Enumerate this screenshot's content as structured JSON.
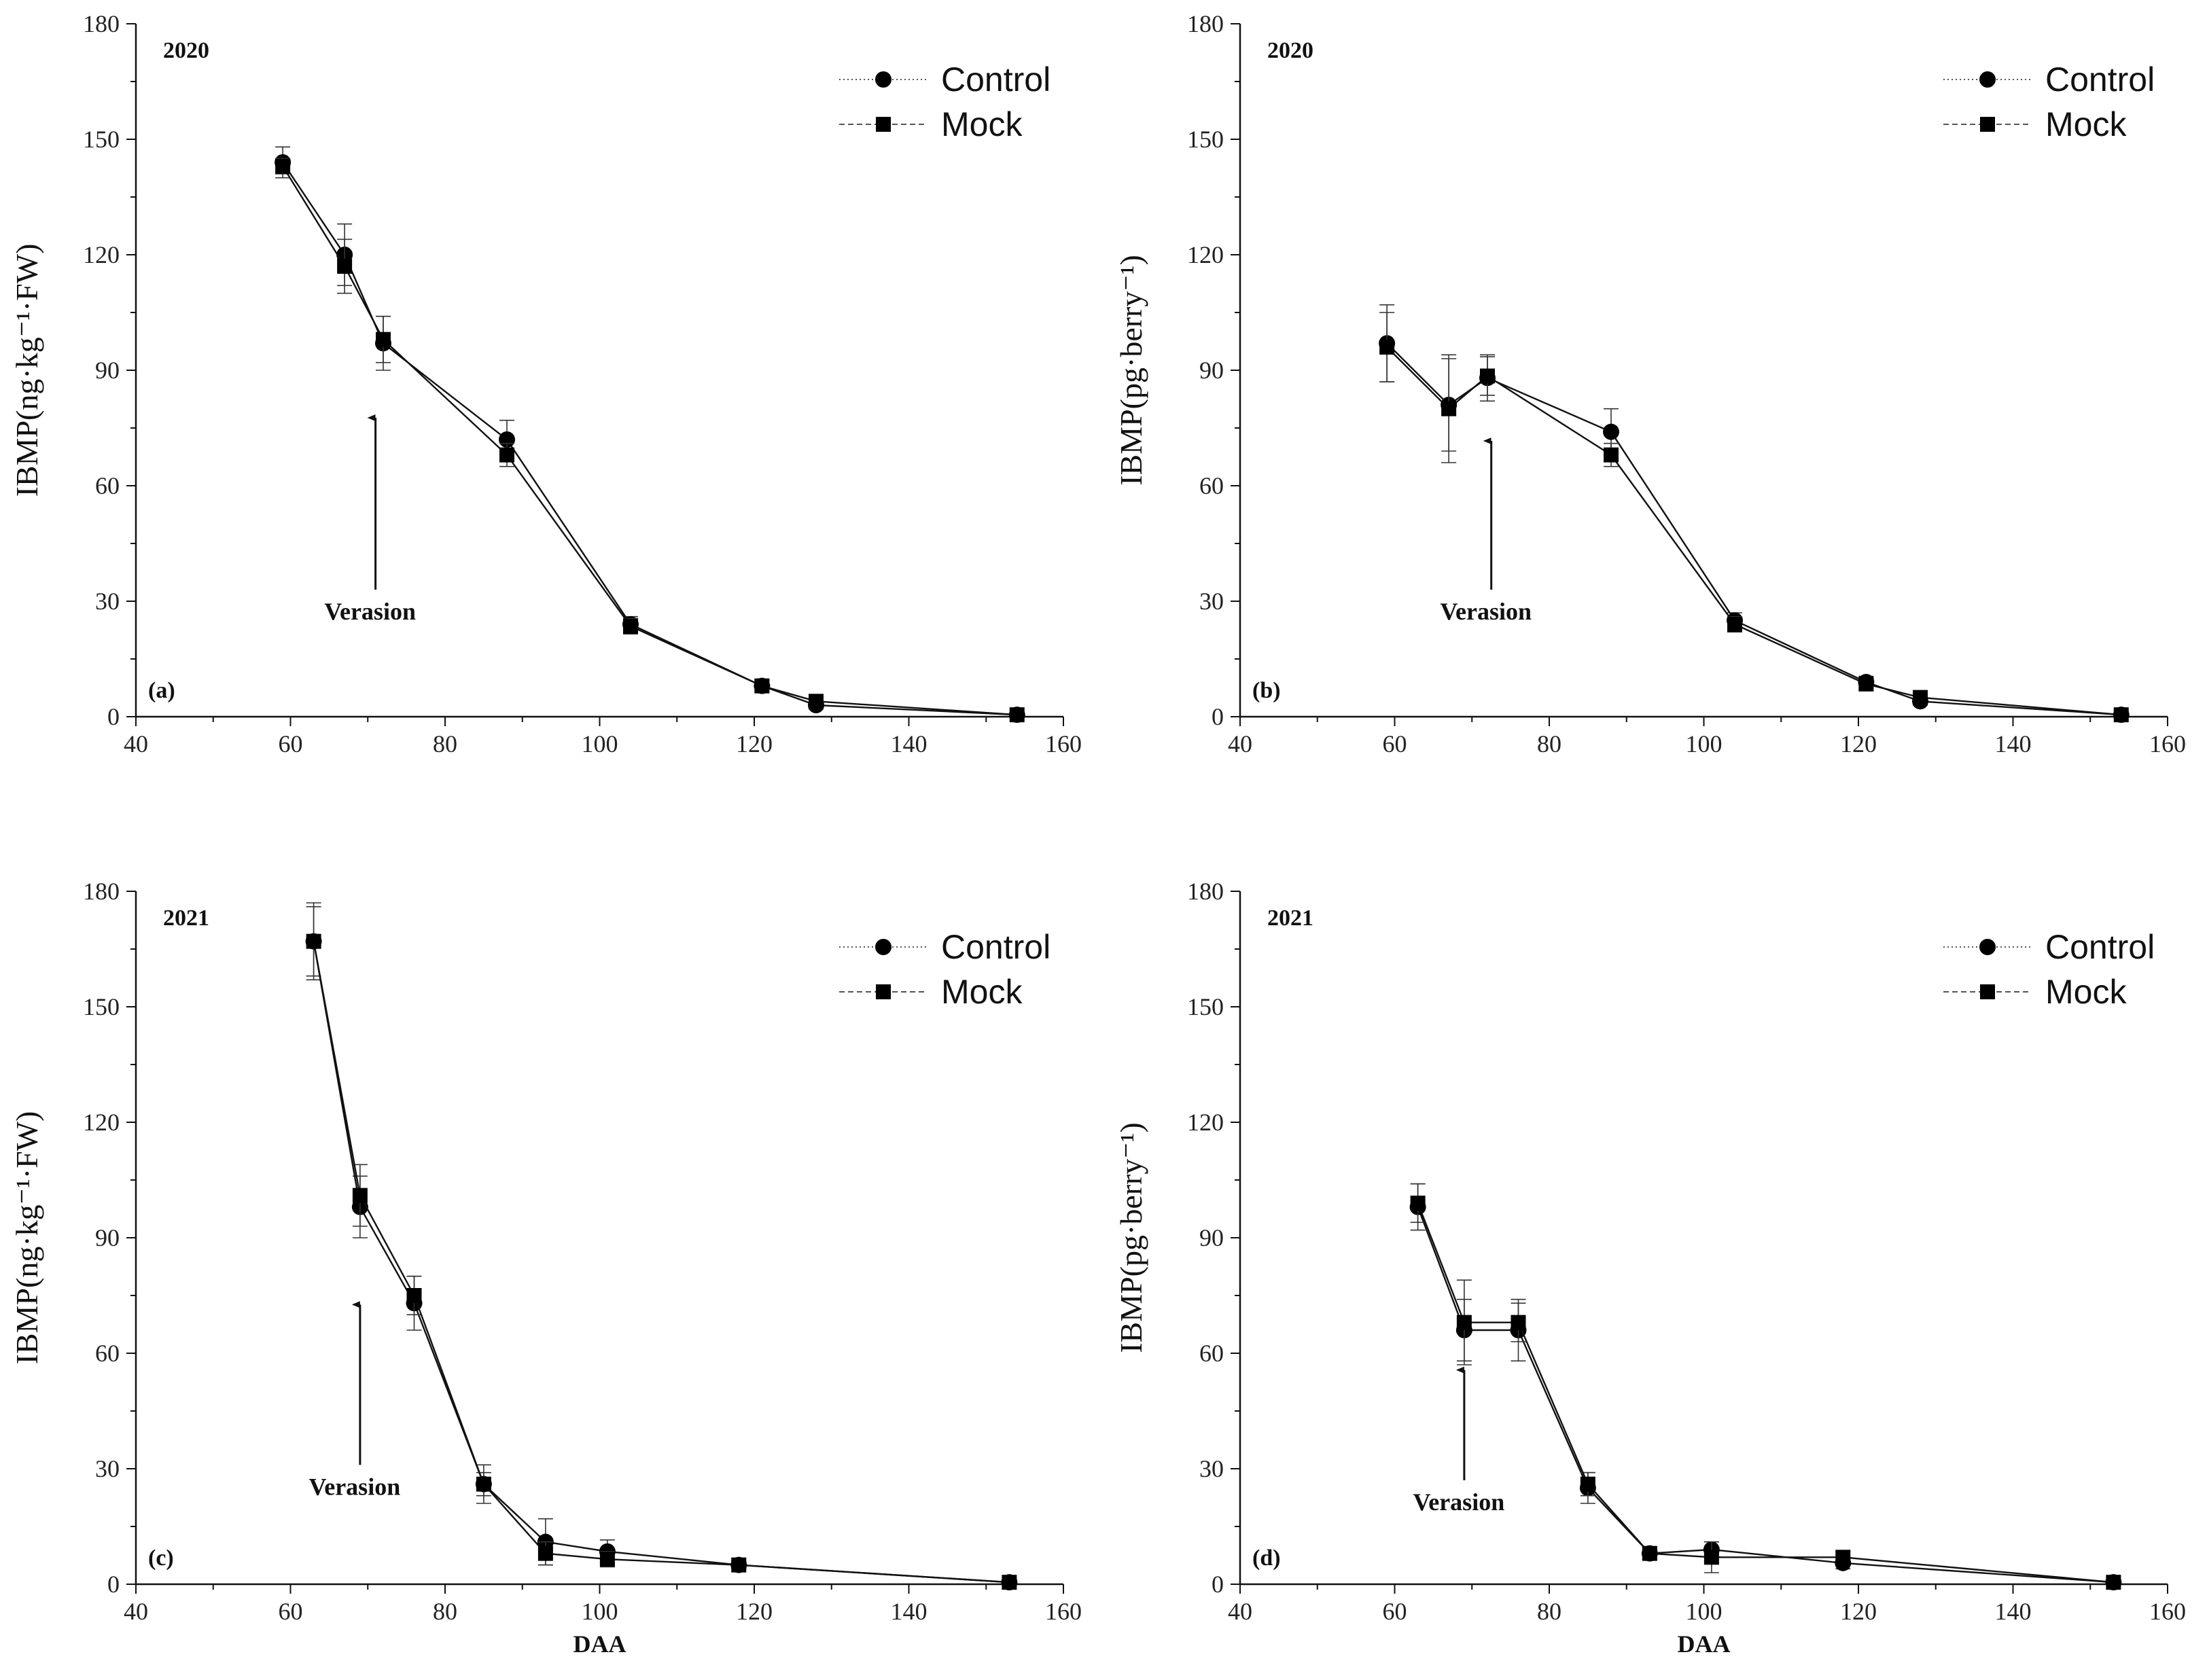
{
  "chart_data": [
    {
      "type": "line",
      "panel_label": "(a)",
      "year": "2020",
      "ylabel": "IBMP(ng·kg⁻¹·FW)",
      "xlabel": "",
      "xlim": [
        40,
        160
      ],
      "ylim": [
        0,
        180
      ],
      "xticks": [
        40,
        60,
        80,
        100,
        120,
        140,
        160
      ],
      "yticks": [
        0,
        30,
        60,
        90,
        120,
        150,
        180
      ],
      "legend_position": "top-right",
      "annotation": {
        "text": "Verasion",
        "x": 71,
        "y_tip": 78,
        "y_tail": 33
      },
      "series": [
        {
          "name": "Control",
          "marker": "circle",
          "line": "dotted",
          "x": [
            59,
            67,
            72,
            88,
            104,
            121,
            128,
            154
          ],
          "y": [
            144,
            120,
            97,
            72,
            24,
            8,
            3,
            0.5
          ],
          "err": [
            4,
            8,
            7,
            5,
            2,
            1.5,
            1,
            0.5
          ]
        },
        {
          "name": "Mock",
          "marker": "square",
          "line": "dashed",
          "x": [
            59,
            67,
            72,
            88,
            104,
            121,
            128,
            154
          ],
          "y": [
            143,
            117,
            98,
            68,
            23.5,
            8,
            4,
            0.5
          ],
          "err": [
            2,
            7,
            6,
            3,
            2,
            1.5,
            1,
            0.5
          ]
        }
      ]
    },
    {
      "type": "line",
      "panel_label": "(b)",
      "year": "2020",
      "ylabel": "IBMP(pg·berry⁻¹)",
      "xlabel": "",
      "xlim": [
        40,
        160
      ],
      "ylim": [
        0,
        180
      ],
      "xticks": [
        40,
        60,
        80,
        100,
        120,
        140,
        160
      ],
      "yticks": [
        0,
        30,
        60,
        90,
        120,
        150,
        180
      ],
      "legend_position": "top-right",
      "annotation": {
        "text": "Verasion",
        "x": 72.5,
        "y_tip": 72,
        "y_tail": 33
      },
      "series": [
        {
          "name": "Control",
          "marker": "circle",
          "line": "dotted",
          "x": [
            59,
            67,
            72,
            88,
            104,
            121,
            128,
            154
          ],
          "y": [
            97,
            81,
            88,
            74,
            25,
            9,
            4,
            0.5
          ],
          "err": [
            10,
            12,
            6,
            6,
            2,
            1.5,
            1,
            0.5
          ]
        },
        {
          "name": "Mock",
          "marker": "square",
          "line": "dashed",
          "x": [
            59,
            67,
            72,
            88,
            104,
            121,
            128,
            154
          ],
          "y": [
            96,
            80,
            88.5,
            68,
            24,
            8.5,
            5,
            0.5
          ],
          "err": [
            9,
            14,
            5,
            3,
            2,
            1.5,
            1,
            0.5
          ]
        }
      ]
    },
    {
      "type": "line",
      "panel_label": "(c)",
      "year": "2021",
      "ylabel": "IBMP(ng·kg⁻¹·FW)",
      "xlabel": "DAA",
      "xlim": [
        40,
        160
      ],
      "ylim": [
        0,
        180
      ],
      "xticks": [
        40,
        60,
        80,
        100,
        120,
        140,
        160
      ],
      "yticks": [
        0,
        30,
        60,
        90,
        120,
        150,
        180
      ],
      "legend_position": "top-right",
      "annotation": {
        "text": "Verasion",
        "x": 69,
        "y_tip": 73,
        "y_tail": 31
      },
      "series": [
        {
          "name": "Control",
          "marker": "circle",
          "line": "dotted",
          "x": [
            63,
            69,
            76,
            85,
            93,
            101,
            118,
            153
          ],
          "y": [
            167,
            98,
            73,
            26,
            11,
            8.5,
            5,
            0.5
          ],
          "err": [
            10,
            8,
            7,
            5,
            6,
            3,
            1,
            0.5
          ]
        },
        {
          "name": "Mock",
          "marker": "square",
          "line": "dashed",
          "x": [
            63,
            69,
            76,
            85,
            93,
            101,
            118,
            153
          ],
          "y": [
            167,
            101,
            75,
            26,
            8,
            6.5,
            5,
            0.5
          ],
          "err": [
            9,
            8,
            5,
            3,
            3,
            2,
            1,
            0.5
          ]
        }
      ]
    },
    {
      "type": "line",
      "panel_label": "(d)",
      "year": "2021",
      "ylabel": "IBMP(pg·berry⁻¹)",
      "xlabel": "DAA",
      "xlim": [
        40,
        160
      ],
      "ylim": [
        0,
        180
      ],
      "xticks": [
        40,
        60,
        80,
        100,
        120,
        140,
        160
      ],
      "yticks": [
        0,
        30,
        60,
        90,
        120,
        150,
        180
      ],
      "legend_position": "top-right",
      "annotation": {
        "text": "Verasion",
        "x": 69,
        "y_tip": 56,
        "y_tail": 27
      },
      "series": [
        {
          "name": "Control",
          "marker": "circle",
          "line": "dotted",
          "x": [
            63,
            69,
            76,
            85,
            93,
            101,
            118,
            153
          ],
          "y": [
            98,
            66,
            66,
            25,
            8,
            9,
            5.5,
            0.5
          ],
          "err": [
            6,
            8,
            8,
            4,
            1.5,
            2,
            1.5,
            0.5
          ]
        },
        {
          "name": "Mock",
          "marker": "square",
          "line": "dashed",
          "x": [
            63,
            69,
            76,
            85,
            93,
            101,
            118,
            153
          ],
          "y": [
            99,
            68,
            68,
            26,
            8,
            7,
            7,
            0.5
          ],
          "err": [
            5,
            11,
            5,
            3,
            1.5,
            4,
            1.5,
            0.5
          ]
        }
      ]
    }
  ]
}
